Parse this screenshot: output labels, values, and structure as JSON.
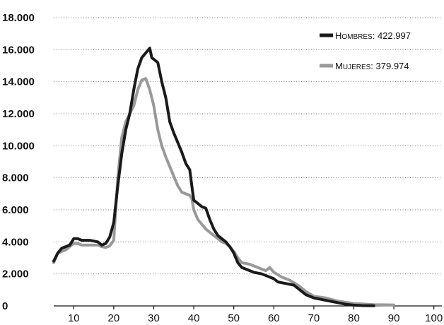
{
  "chart_data": {
    "type": "line",
    "title": "",
    "xlabel": "",
    "ylabel": "",
    "xlim": [
      5,
      102
    ],
    "ylim": [
      0,
      18000
    ],
    "xticks": [
      10,
      20,
      30,
      40,
      50,
      60,
      70,
      80,
      90,
      100
    ],
    "yticks": [
      {
        "value": 0,
        "label": "0"
      },
      {
        "value": 2000,
        "label": "2.000"
      },
      {
        "value": 4000,
        "label": "4.000"
      },
      {
        "value": 6000,
        "label": "6.000"
      },
      {
        "value": 8000,
        "label": "8.000"
      },
      {
        "value": 10000,
        "label": "10.000"
      },
      {
        "value": 12000,
        "label": "12.000"
      },
      {
        "value": 14000,
        "label": "14.000"
      },
      {
        "value": 16000,
        "label": "16.000"
      },
      {
        "value": 18000,
        "label": "18.000"
      }
    ],
    "grid": "horizontal dotted",
    "legend_position": "top-right",
    "series": [
      {
        "name": "Hombres: 422.997",
        "legend_parts": [
          "H",
          "OMBRES",
          ": 422.997"
        ],
        "color": "#1a1a1a",
        "points": [
          [
            5,
            2800
          ],
          [
            6,
            3300
          ],
          [
            7,
            3600
          ],
          [
            8,
            3700
          ],
          [
            9,
            3800
          ],
          [
            10,
            4200
          ],
          [
            11,
            4200
          ],
          [
            12,
            4100
          ],
          [
            14,
            4100
          ],
          [
            16,
            4000
          ],
          [
            17,
            3800
          ],
          [
            18,
            3900
          ],
          [
            19,
            4300
          ],
          [
            20,
            5200
          ],
          [
            21,
            7500
          ],
          [
            22,
            9500
          ],
          [
            23,
            11000
          ],
          [
            24,
            12000
          ],
          [
            25,
            13500
          ],
          [
            26,
            14800
          ],
          [
            27,
            15500
          ],
          [
            28,
            15800
          ],
          [
            29,
            16100
          ],
          [
            29.5,
            15500
          ],
          [
            31,
            15200
          ],
          [
            32,
            14000
          ],
          [
            33,
            13000
          ],
          [
            34,
            11500
          ],
          [
            35,
            10800
          ],
          [
            36,
            10200
          ],
          [
            37,
            9600
          ],
          [
            38,
            8900
          ],
          [
            39,
            8500
          ],
          [
            39.5,
            7500
          ],
          [
            40,
            6600
          ],
          [
            41,
            6400
          ],
          [
            42,
            6200
          ],
          [
            43,
            6100
          ],
          [
            44,
            5400
          ],
          [
            45,
            4800
          ],
          [
            46,
            4400
          ],
          [
            47,
            4200
          ],
          [
            48,
            4000
          ],
          [
            49,
            3700
          ],
          [
            50,
            3300
          ],
          [
            51,
            2700
          ],
          [
            52,
            2400
          ],
          [
            53,
            2300
          ],
          [
            54,
            2200
          ],
          [
            55,
            2100
          ],
          [
            57,
            2000
          ],
          [
            59,
            1800
          ],
          [
            60,
            1700
          ],
          [
            61,
            1500
          ],
          [
            63,
            1400
          ],
          [
            65,
            1300
          ],
          [
            67,
            900
          ],
          [
            68,
            700
          ],
          [
            70,
            500
          ],
          [
            74,
            300
          ],
          [
            78,
            100
          ],
          [
            80,
            50
          ],
          [
            82,
            20
          ],
          [
            85,
            10
          ]
        ]
      },
      {
        "name": "Mujeres: 379.974",
        "legend_parts": [
          "M",
          "UJERES",
          ": 379.974"
        ],
        "color": "#999999",
        "points": [
          [
            5,
            2700
          ],
          [
            6,
            3300
          ],
          [
            7,
            3400
          ],
          [
            8,
            3500
          ],
          [
            9,
            3700
          ],
          [
            10,
            3900
          ],
          [
            11,
            3900
          ],
          [
            12,
            3800
          ],
          [
            14,
            3800
          ],
          [
            16,
            3800
          ],
          [
            17,
            3700
          ],
          [
            18,
            3650
          ],
          [
            19,
            3750
          ],
          [
            20,
            4100
          ],
          [
            21,
            8000
          ],
          [
            22,
            10500
          ],
          [
            23,
            11500
          ],
          [
            24,
            12000
          ],
          [
            25,
            12500
          ],
          [
            26,
            13500
          ],
          [
            27,
            14100
          ],
          [
            28,
            14200
          ],
          [
            29,
            13500
          ],
          [
            30,
            12500
          ],
          [
            31,
            11000
          ],
          [
            32,
            10000
          ],
          [
            33,
            9300
          ],
          [
            34,
            8700
          ],
          [
            35,
            8100
          ],
          [
            36,
            7500
          ],
          [
            37,
            7100
          ],
          [
            38,
            7000
          ],
          [
            39,
            6900
          ],
          [
            39.5,
            6700
          ],
          [
            40,
            6000
          ],
          [
            41,
            5400
          ],
          [
            42,
            5100
          ],
          [
            43,
            4800
          ],
          [
            44,
            4600
          ],
          [
            45,
            4400
          ],
          [
            46,
            4200
          ],
          [
            47,
            4000
          ],
          [
            48,
            3900
          ],
          [
            49,
            3700
          ],
          [
            50,
            3400
          ],
          [
            51,
            3000
          ],
          [
            52,
            2700
          ],
          [
            53,
            2650
          ],
          [
            54,
            2600
          ],
          [
            56,
            2400
          ],
          [
            57,
            2300
          ],
          [
            58,
            2200
          ],
          [
            59,
            2400
          ],
          [
            60,
            2100
          ],
          [
            62,
            1800
          ],
          [
            64,
            1600
          ],
          [
            66,
            1300
          ],
          [
            68,
            900
          ],
          [
            70,
            600
          ],
          [
            73,
            500
          ],
          [
            76,
            300
          ],
          [
            80,
            150
          ],
          [
            85,
            80
          ],
          [
            90,
            60
          ]
        ]
      }
    ]
  }
}
